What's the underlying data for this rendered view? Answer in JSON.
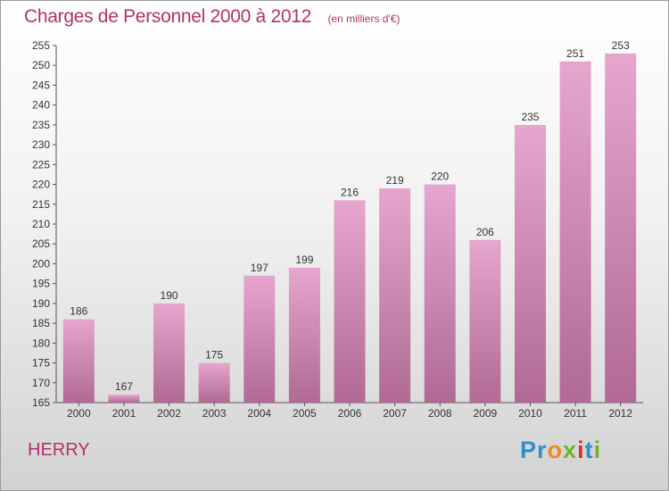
{
  "header": {
    "title": "Charges de Personnel 2000 à 2012",
    "subtitle": "(en milliers d'€)"
  },
  "footer": {
    "commune": "HERRY",
    "brand_letters": [
      {
        "ch": "P",
        "color": "#2e8fd0"
      },
      {
        "ch": "r",
        "color": "#2e8fd0"
      },
      {
        "ch": "o",
        "color": "#f08a1c"
      },
      {
        "ch": "x",
        "color": "#6cb52d"
      },
      {
        "ch": "i",
        "color": "#d8302a"
      },
      {
        "ch": "t",
        "color": "#2e8fd0"
      },
      {
        "ch": "i",
        "color": "#6cb52d"
      }
    ]
  },
  "colors": {
    "accent": "#b5306a",
    "bar_top": "#e6a6cd",
    "bar_bottom": "#b06a94"
  },
  "chart_data": {
    "type": "bar",
    "title": "Charges de Personnel 2000 à 2012",
    "subtitle": "(en milliers d'€)",
    "categories": [
      "2000",
      "2001",
      "2002",
      "2003",
      "2004",
      "2005",
      "2006",
      "2007",
      "2008",
      "2009",
      "2010",
      "2011",
      "2012"
    ],
    "values": [
      186,
      167,
      190,
      175,
      197,
      199,
      216,
      219,
      220,
      206,
      235,
      251,
      253
    ],
    "ylim": [
      165,
      255
    ],
    "yticks": [
      165,
      170,
      175,
      180,
      185,
      190,
      195,
      200,
      205,
      210,
      215,
      220,
      225,
      230,
      235,
      240,
      245,
      250,
      255
    ],
    "grid": false,
    "legend": "none"
  }
}
